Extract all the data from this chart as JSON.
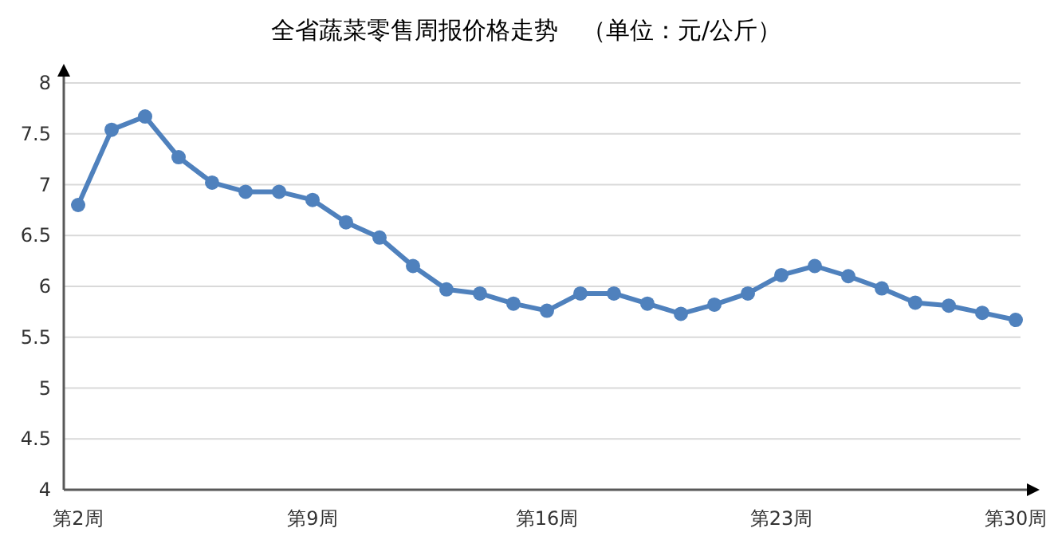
{
  "chart_data": {
    "type": "line",
    "title": "全省蔬菜零售周报价格走势　（单位：元/公斤）",
    "categories": [
      "第2周",
      null,
      null,
      null,
      null,
      null,
      null,
      "第9周",
      null,
      null,
      null,
      null,
      null,
      null,
      "第16周",
      null,
      null,
      null,
      null,
      null,
      null,
      "第23周",
      null,
      null,
      null,
      null,
      null,
      null,
      "第30周"
    ],
    "series": [
      {
        "color": "#4f81bd",
        "values": [
          6.8,
          7.54,
          7.67,
          7.27,
          7.02,
          6.93,
          6.93,
          6.85,
          6.63,
          6.48,
          6.2,
          5.97,
          5.93,
          5.83,
          5.76,
          5.93,
          5.93,
          5.83,
          5.73,
          5.82,
          5.93,
          6.11,
          6.2,
          6.1,
          5.98,
          5.84,
          5.81,
          5.74,
          5.67
        ]
      }
    ],
    "ylim": [
      4,
      8
    ],
    "yticks": [
      4,
      4.5,
      5,
      5.5,
      6,
      6.5,
      7,
      7.5,
      8
    ],
    "grid": "y",
    "marker": "circle",
    "line_style": "solid"
  }
}
